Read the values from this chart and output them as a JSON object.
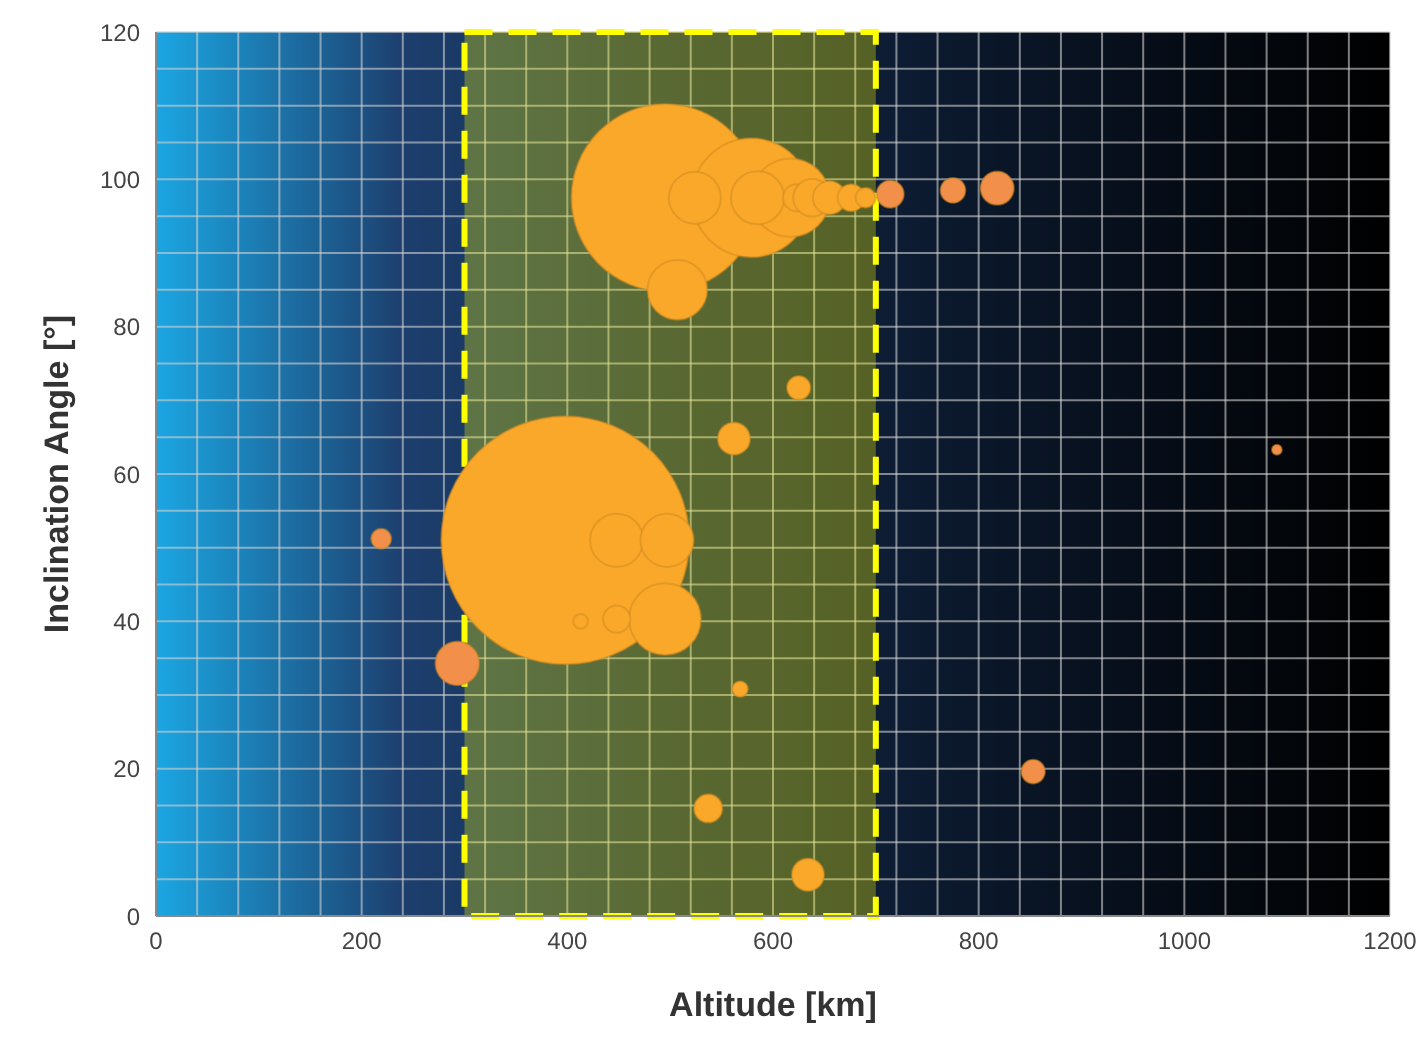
{
  "chart_data": {
    "type": "bubble",
    "xlabel": "Altitude [km]",
    "ylabel": "Inclination Angle [°]",
    "x": [
      398,
      495,
      579,
      617,
      507,
      448,
      497,
      495,
      524,
      585,
      623,
      638,
      655,
      676,
      690,
      448,
      413,
      625,
      562,
      568,
      537,
      634,
      219,
      293,
      714,
      775,
      818,
      853,
      1090
    ],
    "values": [
      51,
      97.5,
      97.5,
      97.5,
      85,
      51,
      51,
      40.3,
      97.5,
      97.5,
      97.5,
      97.5,
      97.5,
      97.5,
      97.5,
      40.3,
      40,
      71.7,
      64.8,
      30.8,
      14.6,
      5.6,
      51.2,
      34.3,
      98,
      98.5,
      98.8,
      19.6,
      63.3
    ],
    "sizes": [
      1,
      0.57,
      0.23,
      0.1,
      0.058,
      0.046,
      0.046,
      0.084,
      0.044,
      0.046,
      0.012,
      0.023,
      0.018,
      0.012,
      0.0065,
      0.012,
      0.0035,
      0.009,
      0.017,
      0.004,
      0.013,
      0.017,
      0.0065,
      0.031,
      0.012,
      0.01,
      0.018,
      0.009,
      0.0016
    ],
    "colors": [
      "#f9a82a",
      "#f9a82a",
      "#f9a82a",
      "#f9a82a",
      "#f9a82a",
      "#f9a82a",
      "#f9a82a",
      "#f9a82a",
      "#f9a82a",
      "#f9a82a",
      "#f9a82a",
      "#f9a82a",
      "#f9a82a",
      "#f9a82a",
      "#f9a82a",
      "#f9a82a",
      "#f9a82a",
      "#f9a82a",
      "#f9a82a",
      "#f9a82a",
      "#f9a82a",
      "#f9a82a",
      "#f28f4b",
      "#f28f4b",
      "#f28f4b",
      "#f28f4b",
      "#f28f4b",
      "#f28f4b",
      "#f28f4b"
    ],
    "xlim": [
      0,
      1200
    ],
    "xticks": [
      0,
      {
        "value": 40,
        "label": null
      },
      {
        "value": 80,
        "label": null
      },
      {
        "value": 120,
        "label": null
      },
      {
        "value": 160,
        "label": null
      },
      200,
      {
        "value": 240,
        "label": null
      },
      {
        "value": 280,
        "label": null
      },
      {
        "value": 320,
        "label": null
      },
      {
        "value": 360,
        "label": null
      },
      400,
      {
        "value": 440,
        "label": null
      },
      {
        "value": 480,
        "label": null
      },
      {
        "value": 520,
        "label": null
      },
      {
        "value": 560,
        "label": null
      },
      600,
      {
        "value": 640,
        "label": null
      },
      {
        "value": 680,
        "label": null
      },
      {
        "value": 720,
        "label": null
      },
      {
        "value": 760,
        "label": null
      },
      800,
      {
        "value": 840,
        "label": null
      },
      {
        "value": 880,
        "label": null
      },
      {
        "value": 920,
        "label": null
      },
      {
        "value": 960,
        "label": null
      },
      1000,
      {
        "value": 1040,
        "label": null
      },
      {
        "value": 1080,
        "label": null
      },
      {
        "value": 1120,
        "label": null
      },
      {
        "value": 1160,
        "label": null
      },
      1200
    ],
    "ylim": [
      0,
      120
    ],
    "yticks": [
      0,
      {
        "value": 5,
        "label": null
      },
      {
        "value": 10,
        "label": null
      },
      {
        "value": 15,
        "label": null
      },
      20,
      {
        "value": 25,
        "label": null
      },
      {
        "value": 30,
        "label": null
      },
      {
        "value": 35,
        "label": null
      },
      40,
      {
        "value": 45,
        "label": null
      },
      {
        "value": 50,
        "label": null
      },
      {
        "value": 55,
        "label": null
      },
      60,
      {
        "value": 65,
        "label": null
      },
      {
        "value": 70,
        "label": null
      },
      {
        "value": 75,
        "label": null
      },
      80,
      {
        "value": 85,
        "label": null
      },
      {
        "value": 90,
        "label": null
      },
      {
        "value": 95,
        "label": null
      },
      100,
      {
        "value": 105,
        "label": null
      },
      {
        "value": 110,
        "label": null
      },
      {
        "value": 115,
        "label": null
      },
      120
    ],
    "grid": true,
    "bands": [
      {
        "axis": "x",
        "from": 300,
        "to": 700,
        "color": "#ffff00"
      }
    ]
  }
}
